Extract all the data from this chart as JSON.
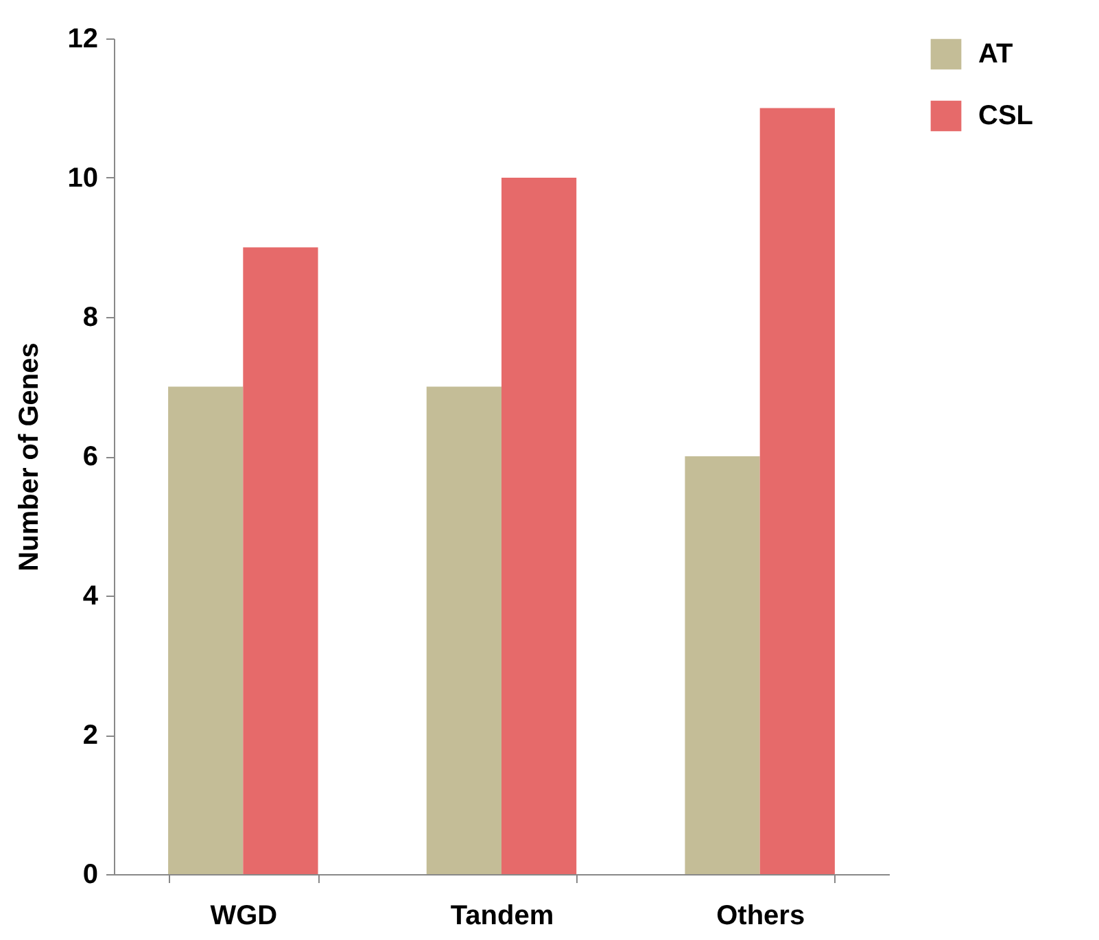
{
  "chart_data": {
    "type": "bar",
    "ylabel": "Number of Genes",
    "categories": [
      "WGD",
      "Tandem",
      "Others"
    ],
    "series": [
      {
        "name": "AT",
        "color": "#c4bd97",
        "values": [
          7,
          7,
          6
        ]
      },
      {
        "name": "CSL",
        "color": "#e66a6a",
        "values": [
          9,
          10,
          11
        ]
      }
    ],
    "ylim": [
      0,
      12
    ],
    "yticks": [
      0,
      2,
      4,
      6,
      8,
      10,
      12
    ],
    "grid": false,
    "legend": "right"
  }
}
